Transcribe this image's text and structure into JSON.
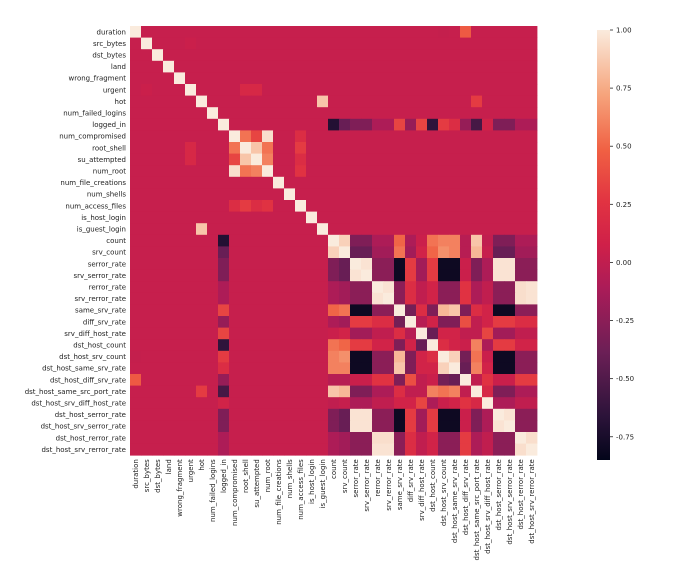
{
  "chart_data": {
    "type": "heatmap",
    "title": "",
    "xlabel": "",
    "ylabel": "",
    "labels": [
      "duration",
      "src_bytes",
      "dst_bytes",
      "land",
      "wrong_fragment",
      "urgent",
      "hot",
      "num_failed_logins",
      "logged_in",
      "num_compromised",
      "root_shell",
      "su_attempted",
      "num_root",
      "num_file_creations",
      "num_shells",
      "num_access_files",
      "is_host_login",
      "is_guest_login",
      "count",
      "srv_count",
      "serror_rate",
      "srv_serror_rate",
      "rerror_rate",
      "srv_rerror_rate",
      "same_srv_rate",
      "diff_srv_rate",
      "srv_diff_host_rate",
      "dst_host_count",
      "dst_host_srv_count",
      "dst_host_same_srv_rate",
      "dst_host_diff_srv_rate",
      "dst_host_same_src_port_rate",
      "dst_host_srv_diff_host_rate",
      "dst_host_serror_rate",
      "dst_host_srv_serror_rate",
      "dst_host_rerror_rate",
      "dst_host_srv_rerror_rate"
    ],
    "colorbar": {
      "min": -0.85,
      "max": 1.0,
      "ticks": [
        "1.00",
        "0.75",
        "0.50",
        "0.25",
        "0.00",
        "-0.25",
        "-0.50",
        "-0.75"
      ]
    },
    "grid": false,
    "legend": "right"
  }
}
